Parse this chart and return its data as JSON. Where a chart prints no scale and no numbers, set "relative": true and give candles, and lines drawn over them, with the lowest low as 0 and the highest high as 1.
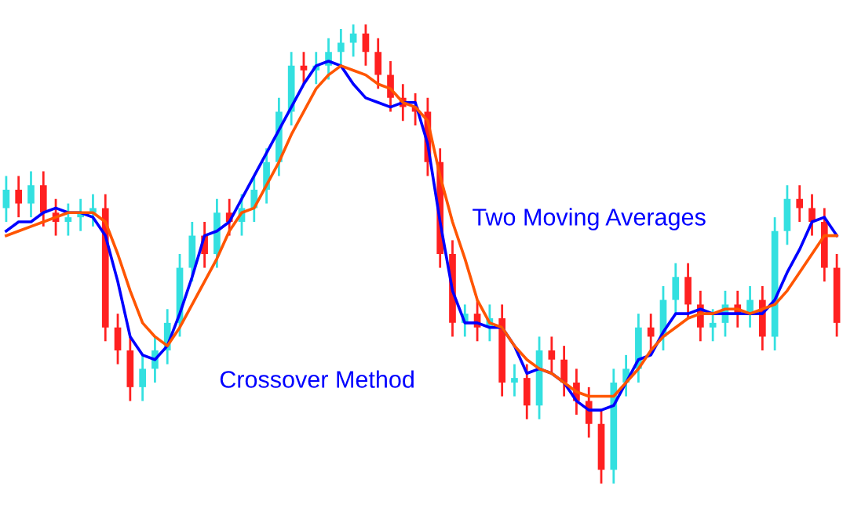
{
  "chart_data": {
    "type": "candlestick",
    "relative": true,
    "categories": [
      null,
      null,
      null,
      null,
      null,
      null,
      null,
      null,
      null,
      null,
      null,
      null,
      null,
      null,
      null,
      null,
      null,
      null,
      null,
      null,
      null,
      null,
      null,
      null,
      null,
      null,
      null,
      null,
      null,
      null,
      null,
      null,
      null,
      null,
      null,
      null,
      null,
      null,
      null,
      null,
      null,
      null,
      null,
      null,
      null,
      null,
      null,
      null,
      null,
      null,
      null,
      null,
      null,
      null,
      null,
      null,
      null,
      null,
      null,
      null,
      null,
      null,
      null,
      null,
      null,
      null,
      null,
      null
    ],
    "ohlc": [
      [
        0.6,
        0.67,
        0.57,
        0.64
      ],
      [
        0.64,
        0.67,
        0.58,
        0.61
      ],
      [
        0.61,
        0.68,
        0.58,
        0.65
      ],
      [
        0.65,
        0.68,
        0.56,
        0.59
      ],
      [
        0.59,
        0.62,
        0.54,
        0.57
      ],
      [
        0.57,
        0.61,
        0.54,
        0.58
      ],
      [
        0.58,
        0.62,
        0.55,
        0.59
      ],
      [
        0.59,
        0.63,
        0.56,
        0.6
      ],
      [
        0.6,
        0.63,
        0.31,
        0.34
      ],
      [
        0.34,
        0.37,
        0.26,
        0.29
      ],
      [
        0.29,
        0.32,
        0.18,
        0.21
      ],
      [
        0.21,
        0.28,
        0.18,
        0.25
      ],
      [
        0.25,
        0.32,
        0.22,
        0.29
      ],
      [
        0.29,
        0.38,
        0.26,
        0.35
      ],
      [
        0.35,
        0.5,
        0.32,
        0.47
      ],
      [
        0.47,
        0.57,
        0.44,
        0.54
      ],
      [
        0.54,
        0.57,
        0.47,
        0.5
      ],
      [
        0.5,
        0.62,
        0.47,
        0.59
      ],
      [
        0.59,
        0.62,
        0.54,
        0.57
      ],
      [
        0.57,
        0.63,
        0.54,
        0.6
      ],
      [
        0.6,
        0.67,
        0.57,
        0.64
      ],
      [
        0.64,
        0.73,
        0.61,
        0.7
      ],
      [
        0.7,
        0.84,
        0.67,
        0.81
      ],
      [
        0.81,
        0.94,
        0.78,
        0.91
      ],
      [
        0.91,
        0.94,
        0.87,
        0.9
      ],
      [
        0.9,
        0.94,
        0.87,
        0.91
      ],
      [
        0.91,
        0.97,
        0.88,
        0.94
      ],
      [
        0.94,
        0.99,
        0.91,
        0.96
      ],
      [
        0.96,
        1.0,
        0.93,
        0.98
      ],
      [
        0.98,
        1.0,
        0.91,
        0.94
      ],
      [
        0.94,
        0.97,
        0.86,
        0.89
      ],
      [
        0.89,
        0.92,
        0.81,
        0.84
      ],
      [
        0.84,
        0.87,
        0.79,
        0.82
      ],
      [
        0.82,
        0.85,
        0.78,
        0.81
      ],
      [
        0.81,
        0.84,
        0.67,
        0.7
      ],
      [
        0.7,
        0.73,
        0.47,
        0.5
      ],
      [
        0.5,
        0.53,
        0.32,
        0.35
      ],
      [
        0.35,
        0.39,
        0.32,
        0.37
      ],
      [
        0.37,
        0.4,
        0.31,
        0.34
      ],
      [
        0.34,
        0.39,
        0.31,
        0.36
      ],
      [
        0.36,
        0.39,
        0.19,
        0.22
      ],
      [
        0.22,
        0.26,
        0.19,
        0.23
      ],
      [
        0.23,
        0.26,
        0.14,
        0.17
      ],
      [
        0.17,
        0.32,
        0.14,
        0.29
      ],
      [
        0.29,
        0.32,
        0.24,
        0.27
      ],
      [
        0.27,
        0.3,
        0.19,
        0.22
      ],
      [
        0.22,
        0.25,
        0.15,
        0.18
      ],
      [
        0.18,
        0.21,
        0.1,
        0.13
      ],
      [
        0.13,
        0.16,
        0.0,
        0.03
      ],
      [
        0.03,
        0.25,
        0.0,
        0.22
      ],
      [
        0.22,
        0.28,
        0.19,
        0.25
      ],
      [
        0.25,
        0.37,
        0.22,
        0.34
      ],
      [
        0.34,
        0.37,
        0.29,
        0.32
      ],
      [
        0.32,
        0.43,
        0.29,
        0.4
      ],
      [
        0.4,
        0.48,
        0.37,
        0.45
      ],
      [
        0.45,
        0.48,
        0.36,
        0.39
      ],
      [
        0.39,
        0.42,
        0.31,
        0.34
      ],
      [
        0.34,
        0.38,
        0.31,
        0.35
      ],
      [
        0.35,
        0.42,
        0.32,
        0.39
      ],
      [
        0.39,
        0.42,
        0.34,
        0.37
      ],
      [
        0.37,
        0.43,
        0.34,
        0.4
      ],
      [
        0.4,
        0.43,
        0.29,
        0.32
      ],
      [
        0.32,
        0.58,
        0.29,
        0.55
      ],
      [
        0.55,
        0.65,
        0.52,
        0.62
      ],
      [
        0.62,
        0.65,
        0.57,
        0.6
      ],
      [
        0.6,
        0.63,
        0.54,
        0.57
      ],
      [
        0.57,
        0.6,
        0.44,
        0.47
      ],
      [
        0.47,
        0.5,
        0.32,
        0.35
      ]
    ],
    "colors": [
      "#33e0e0",
      "#ff2020",
      "#33e0e0",
      "#ff2020",
      "#ff2020",
      "#33e0e0",
      "#33e0e0",
      "#33e0e0",
      "#ff2020",
      "#ff2020",
      "#ff2020",
      "#33e0e0",
      "#33e0e0",
      "#33e0e0",
      "#33e0e0",
      "#33e0e0",
      "#ff2020",
      "#33e0e0",
      "#ff2020",
      "#33e0e0",
      "#33e0e0",
      "#33e0e0",
      "#33e0e0",
      "#33e0e0",
      "#ff2020",
      "#33e0e0",
      "#33e0e0",
      "#33e0e0",
      "#33e0e0",
      "#ff2020",
      "#ff2020",
      "#ff2020",
      "#ff2020",
      "#ff2020",
      "#ff2020",
      "#ff2020",
      "#ff2020",
      "#33e0e0",
      "#ff2020",
      "#33e0e0",
      "#ff2020",
      "#33e0e0",
      "#ff2020",
      "#33e0e0",
      "#ff2020",
      "#ff2020",
      "#ff2020",
      "#ff2020",
      "#ff2020",
      "#33e0e0",
      "#33e0e0",
      "#33e0e0",
      "#ff2020",
      "#33e0e0",
      "#33e0e0",
      "#ff2020",
      "#ff2020",
      "#33e0e0",
      "#33e0e0",
      "#ff2020",
      "#33e0e0",
      "#ff2020",
      "#33e0e0",
      "#33e0e0",
      "#ff2020",
      "#ff2020",
      "#ff2020",
      "#ff2020"
    ],
    "series": [
      {
        "type": "line",
        "color": "#0000ff",
        "values": [
          0.55,
          0.57,
          0.57,
          0.59,
          0.6,
          0.59,
          0.59,
          0.58,
          0.54,
          0.44,
          0.32,
          0.28,
          0.27,
          0.3,
          0.37,
          0.45,
          0.54,
          0.55,
          0.57,
          0.62,
          0.67,
          0.72,
          0.77,
          0.82,
          0.87,
          0.91,
          0.92,
          0.91,
          0.87,
          0.84,
          0.83,
          0.82,
          0.83,
          0.83,
          0.74,
          0.57,
          0.42,
          0.35,
          0.35,
          0.34,
          0.34,
          0.3,
          0.24,
          0.25,
          0.24,
          0.22,
          0.18,
          0.16,
          0.16,
          0.17,
          0.22,
          0.27,
          0.28,
          0.33,
          0.37,
          0.37,
          0.38,
          0.37,
          0.37,
          0.37,
          0.37,
          0.37,
          0.4,
          0.46,
          0.51,
          0.57,
          0.58,
          0.54
        ]
      },
      {
        "type": "line",
        "color": "#ff5500",
        "values": [
          0.54,
          0.55,
          0.56,
          0.57,
          0.58,
          0.59,
          0.59,
          0.59,
          0.57,
          0.5,
          0.42,
          0.35,
          0.32,
          0.3,
          0.34,
          0.39,
          0.44,
          0.49,
          0.55,
          0.59,
          0.6,
          0.65,
          0.7,
          0.76,
          0.81,
          0.86,
          0.89,
          0.91,
          0.9,
          0.89,
          0.87,
          0.86,
          0.83,
          0.82,
          0.79,
          0.67,
          0.57,
          0.49,
          0.4,
          0.35,
          0.34,
          0.3,
          0.27,
          0.25,
          0.24,
          0.22,
          0.2,
          0.19,
          0.19,
          0.19,
          0.22,
          0.25,
          0.29,
          0.32,
          0.34,
          0.36,
          0.37,
          0.37,
          0.38,
          0.38,
          0.37,
          0.38,
          0.39,
          0.42,
          0.46,
          0.5,
          0.54,
          0.54
        ]
      }
    ],
    "annotations": [
      "Two Moving Averages",
      "Crossover Method"
    ]
  }
}
